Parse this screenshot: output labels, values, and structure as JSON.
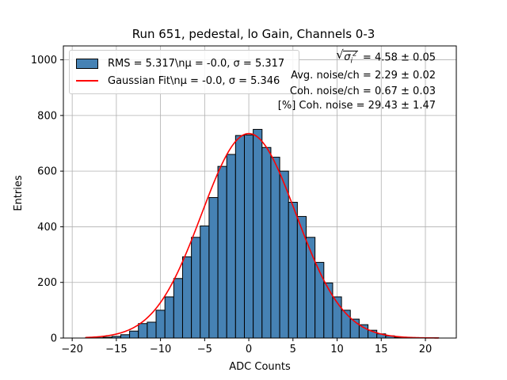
{
  "chart_data": {
    "type": "bar",
    "title": "Run 651, pedestal, lo Gain, Channels 0-3",
    "xlabel": "ADC Counts",
    "ylabel": "Entries",
    "xlim": [
      -21,
      23.5
    ],
    "ylim": [
      0,
      1050
    ],
    "xticks": [
      -20,
      -15,
      -10,
      -5,
      0,
      5,
      10,
      15,
      20
    ],
    "yticks": [
      0,
      200,
      400,
      600,
      800,
      1000
    ],
    "grid": true,
    "legend_position": "top-left",
    "bin_width": 1,
    "bin_centers": [
      -18,
      -17,
      -16,
      -15,
      -14,
      -13,
      -12,
      -11,
      -10,
      -9,
      -8,
      -7,
      -6,
      -5,
      -4,
      -3,
      -2,
      -1,
      0,
      1,
      2,
      3,
      4,
      5,
      6,
      7,
      8,
      9,
      10,
      11,
      12,
      13,
      14,
      15,
      16,
      17,
      18,
      19,
      20,
      21
    ],
    "histogram_counts": [
      1,
      1,
      3,
      6,
      12,
      25,
      52,
      57,
      100,
      148,
      214,
      292,
      362,
      403,
      505,
      617,
      660,
      728,
      730,
      750,
      685,
      650,
      600,
      488,
      437,
      362,
      272,
      198,
      148,
      100,
      68,
      48,
      28,
      15,
      8,
      3,
      2,
      1,
      1,
      1
    ],
    "histogram_color": "#4682b4",
    "fit_color": "#ff0000",
    "fit": {
      "mean": -0.0,
      "sigma": 5.346,
      "amplitude": 735,
      "x_range": [
        -18.5,
        21.5
      ]
    },
    "series": [
      {
        "name": "RMS = 5.317\\n$\\mu$ = -0.0, $\\sigma$ = 5.317",
        "display": "RMS = 5.317\\nμ = -0.0, σ = 5.317"
      },
      {
        "name": "Gaussian Fit\\n$\\mu$ = -0.0, $\\sigma$ = 5.346",
        "display": "Gaussian Fit\\nμ = -0.0, σ = 5.346"
      }
    ],
    "annotations": {
      "sqrt_label": "σ",
      "sqrt_sup": "2",
      "sqrt_sub": "i",
      "line1_value": "= 4.58 ± 0.05",
      "line2": "Avg. noise/ch = 2.29 ± 0.02",
      "line3": "Coh. noise/ch = 0.67 ± 0.03",
      "line4": "[%] Coh. noise = 29.43 ± 1.47"
    }
  }
}
